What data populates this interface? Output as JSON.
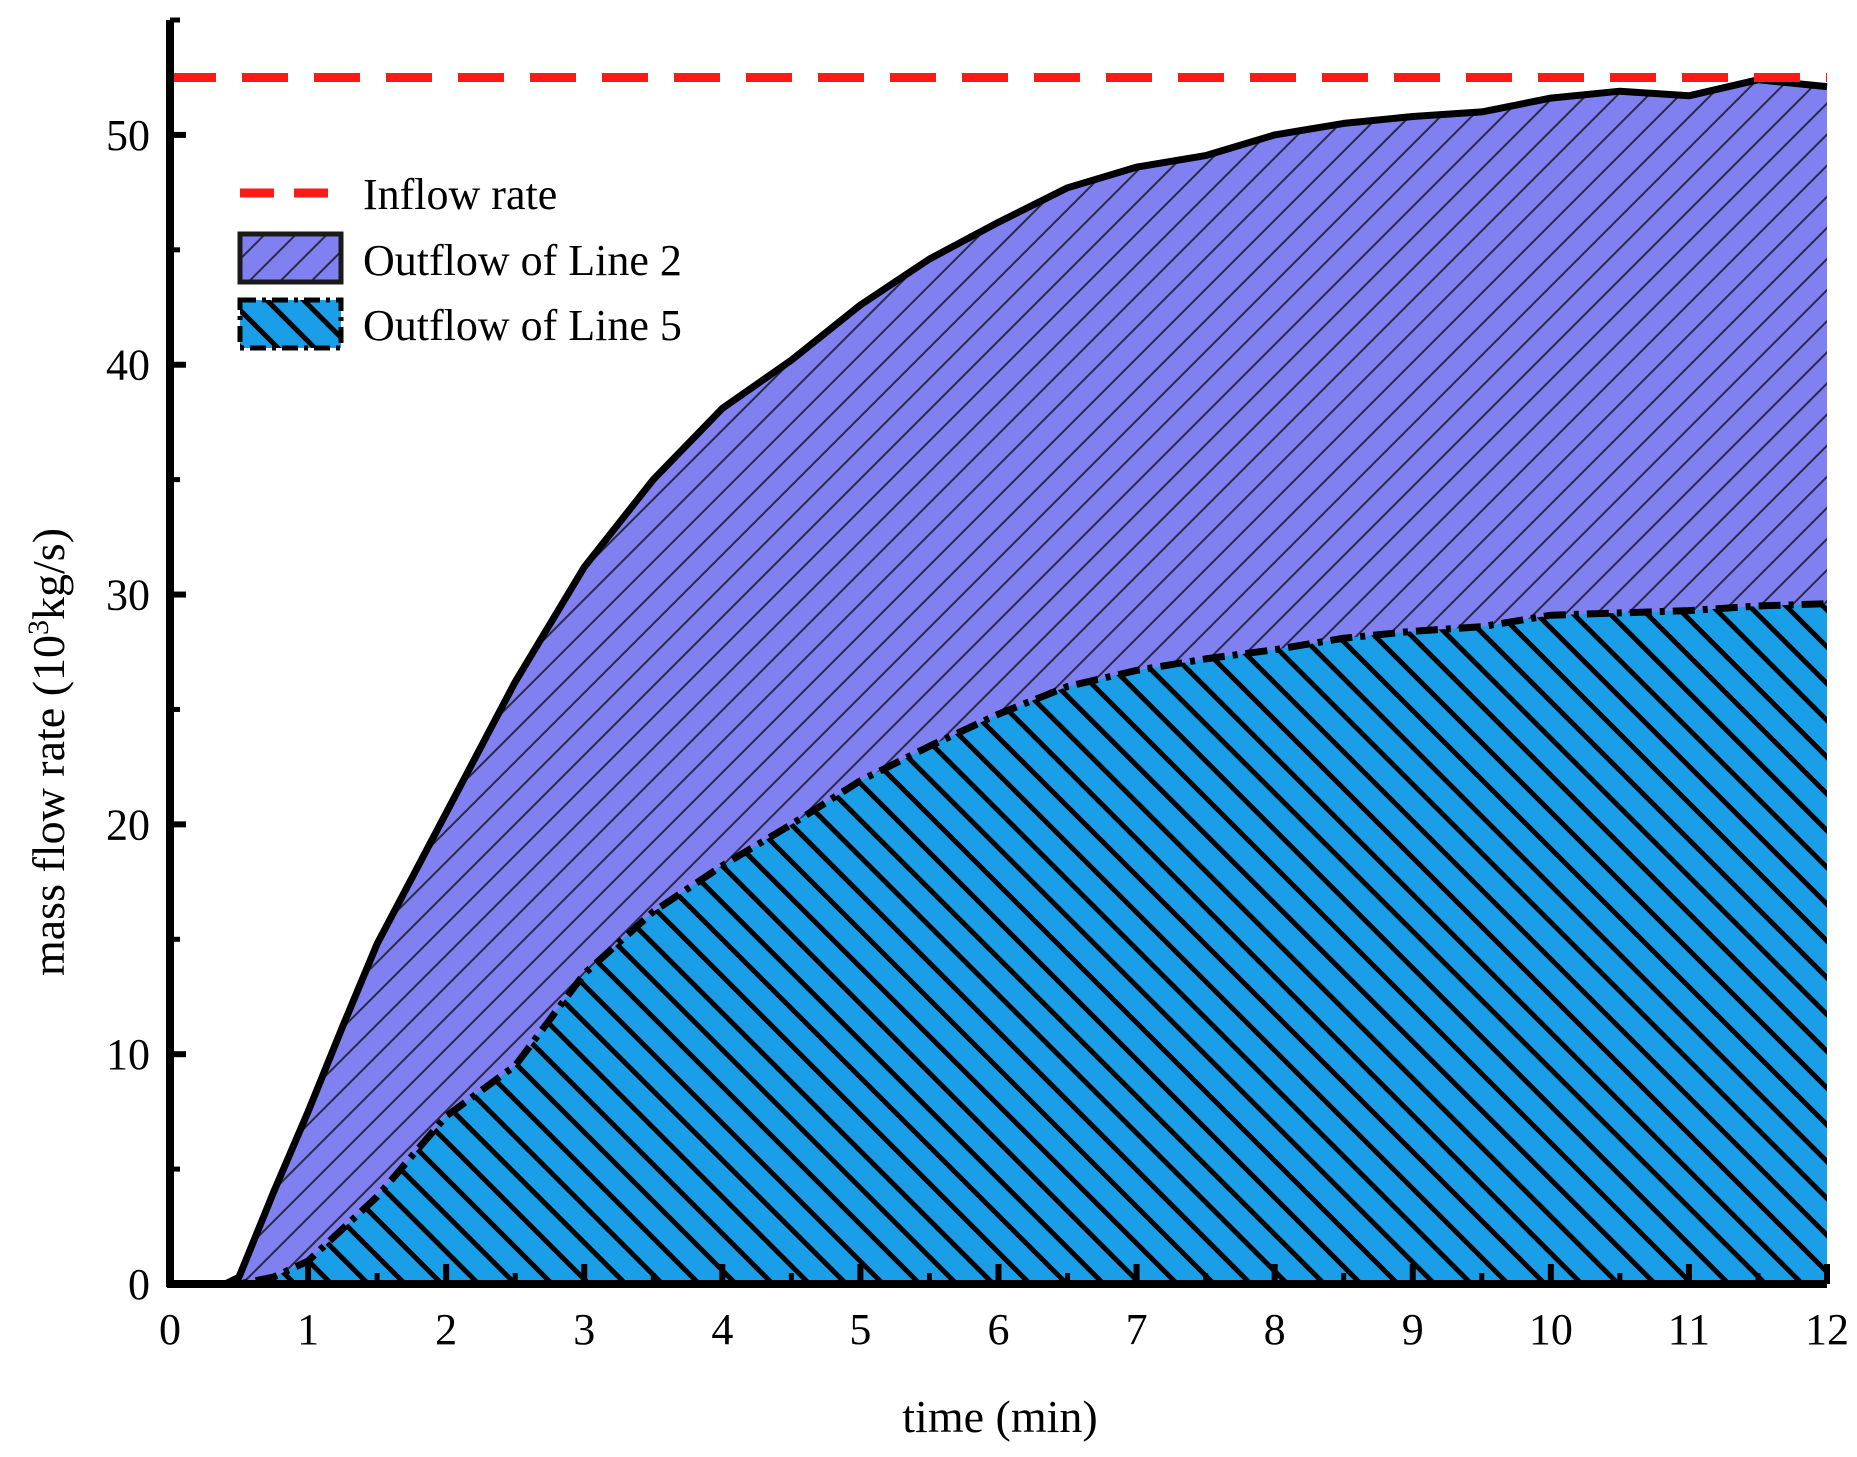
{
  "chart_data": {
    "type": "area",
    "xlabel": "time (min)",
    "ylabel": {
      "prefix": "mass flow rate (10",
      "superscript": "3",
      "suffix": "kg/s)"
    },
    "xlim": [
      0,
      12
    ],
    "ylim": [
      0,
      55
    ],
    "x_ticks": [
      "0",
      "1",
      "2",
      "3",
      "4",
      "5",
      "6",
      "7",
      "8",
      "9",
      "10",
      "11",
      "12"
    ],
    "y_ticks": [
      "0",
      "10",
      "20",
      "30",
      "40",
      "50"
    ],
    "grid": false,
    "legend_position": "top-left",
    "inflow_rate": {
      "name": "Inflow rate",
      "value": 52.5,
      "color": "#ff1a1a",
      "style": "dashed"
    },
    "series": [
      {
        "name": "Outflow of Line 2",
        "fill": "#8080f0",
        "hatch": "forward-diagonal",
        "x": [
          0,
          0.4,
          0.5,
          0.75,
          1,
          1.25,
          1.5,
          2,
          2.5,
          3,
          3.5,
          4,
          4.5,
          5,
          5.5,
          6,
          6.5,
          7,
          7.5,
          8,
          8.5,
          9,
          9.5,
          10,
          10.5,
          11,
          11.5,
          12
        ],
        "values": [
          0,
          0,
          0.3,
          4,
          7.5,
          11.2,
          14.8,
          20.5,
          26.2,
          31.2,
          35,
          38.1,
          40.2,
          42.6,
          44.6,
          46.2,
          47.7,
          48.6,
          49.1,
          50,
          50.5,
          50.8,
          51,
          51.6,
          51.9,
          51.7,
          52.4,
          52.1
        ]
      },
      {
        "name": "Outflow of Line 5",
        "fill": "#1a9ee8",
        "hatch": "backward-diagonal",
        "x": [
          0,
          0.5,
          0.75,
          1,
          1.5,
          2,
          2.5,
          3,
          3.5,
          4,
          4.5,
          5,
          5.5,
          6,
          6.5,
          7,
          7.5,
          8,
          8.5,
          9,
          9.5,
          10,
          10.5,
          11,
          11.5,
          12
        ],
        "values": [
          0,
          0,
          0.3,
          1,
          3.8,
          7.3,
          9.5,
          13.5,
          16.2,
          18.2,
          20,
          21.9,
          23.4,
          24.8,
          26,
          26.7,
          27.2,
          27.6,
          28.1,
          28.4,
          28.6,
          29.1,
          29.2,
          29.3,
          29.5,
          29.6
        ]
      }
    ]
  }
}
